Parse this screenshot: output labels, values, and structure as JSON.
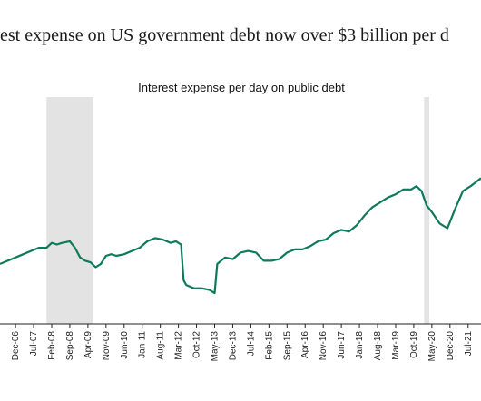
{
  "page": {
    "title": "est expense on US government debt now over $3 billion per d"
  },
  "chart_data": {
    "type": "line",
    "title": "Interest expense per day on public debt",
    "xlabel": "",
    "ylabel": "",
    "x_tick_labels": [
      "Dec-06",
      "Jul-07",
      "Feb-08",
      "Sep-08",
      "Apr-09",
      "Nov-09",
      "Jun-10",
      "Jan-11",
      "Aug-11",
      "Mar-12",
      "Oct-12",
      "May-13",
      "Dec-13",
      "Jul-14",
      "Feb-15",
      "Sep-15",
      "Apr-16",
      "Nov-16",
      "Jun-17",
      "Jan-18",
      "Aug-18",
      "Mar-19",
      "Oct-19",
      "May-20",
      "Dec-20",
      "Jul-21"
    ],
    "x_start": "2006-06",
    "x_end": "2021-12",
    "grid": false,
    "shaded_periods": [
      {
        "start": "2007-12",
        "end": "2009-06"
      },
      {
        "start": "2020-02",
        "end": "2020-04"
      }
    ],
    "line_color": "#0f7a5b",
    "shade_color": "#e3e3e3",
    "series": [
      {
        "x": [
          "2006-06",
          "2006-09",
          "2006-12",
          "2007-03",
          "2007-06",
          "2007-09",
          "2007-12",
          "2008-02",
          "2008-04",
          "2008-06",
          "2008-09",
          "2008-11",
          "2009-01",
          "2009-03",
          "2009-05",
          "2009-07",
          "2009-09",
          "2009-11",
          "2010-01",
          "2010-03",
          "2010-06",
          "2010-09",
          "2010-12",
          "2011-03",
          "2011-06",
          "2011-09",
          "2011-12",
          "2012-02",
          "2012-04",
          "2012-05",
          "2012-06",
          "2012-09",
          "2012-12",
          "2013-03",
          "2013-05",
          "2013-06",
          "2013-09",
          "2013-12",
          "2014-03",
          "2014-06",
          "2014-09",
          "2014-12",
          "2015-03",
          "2015-06",
          "2015-09",
          "2015-12",
          "2016-03",
          "2016-06",
          "2016-09",
          "2016-12",
          "2017-03",
          "2017-06",
          "2017-09",
          "2017-12",
          "2018-03",
          "2018-06",
          "2018-09",
          "2018-12",
          "2019-03",
          "2019-06",
          "2019-09",
          "2019-11",
          "2020-01",
          "2020-03",
          "2020-05",
          "2020-08",
          "2020-11",
          "2021-02",
          "2021-05",
          "2021-08",
          "2021-12"
        ],
        "y": [
          2.22,
          2.24,
          2.26,
          2.28,
          2.3,
          2.32,
          2.32,
          2.35,
          2.34,
          2.35,
          2.36,
          2.32,
          2.26,
          2.24,
          2.23,
          2.2,
          2.22,
          2.27,
          2.28,
          2.27,
          2.28,
          2.3,
          2.32,
          2.36,
          2.38,
          2.37,
          2.35,
          2.36,
          2.34,
          2.12,
          2.09,
          2.07,
          2.07,
          2.06,
          2.04,
          2.22,
          2.26,
          2.25,
          2.29,
          2.3,
          2.29,
          2.24,
          2.24,
          2.25,
          2.29,
          2.31,
          2.31,
          2.33,
          2.36,
          2.37,
          2.41,
          2.43,
          2.42,
          2.46,
          2.52,
          2.57,
          2.6,
          2.63,
          2.65,
          2.68,
          2.68,
          2.7,
          2.67,
          2.58,
          2.54,
          2.47,
          2.44,
          2.56,
          2.67,
          2.7,
          2.75
        ]
      }
    ],
    "ylim": [
      1.85,
      3.25
    ]
  }
}
